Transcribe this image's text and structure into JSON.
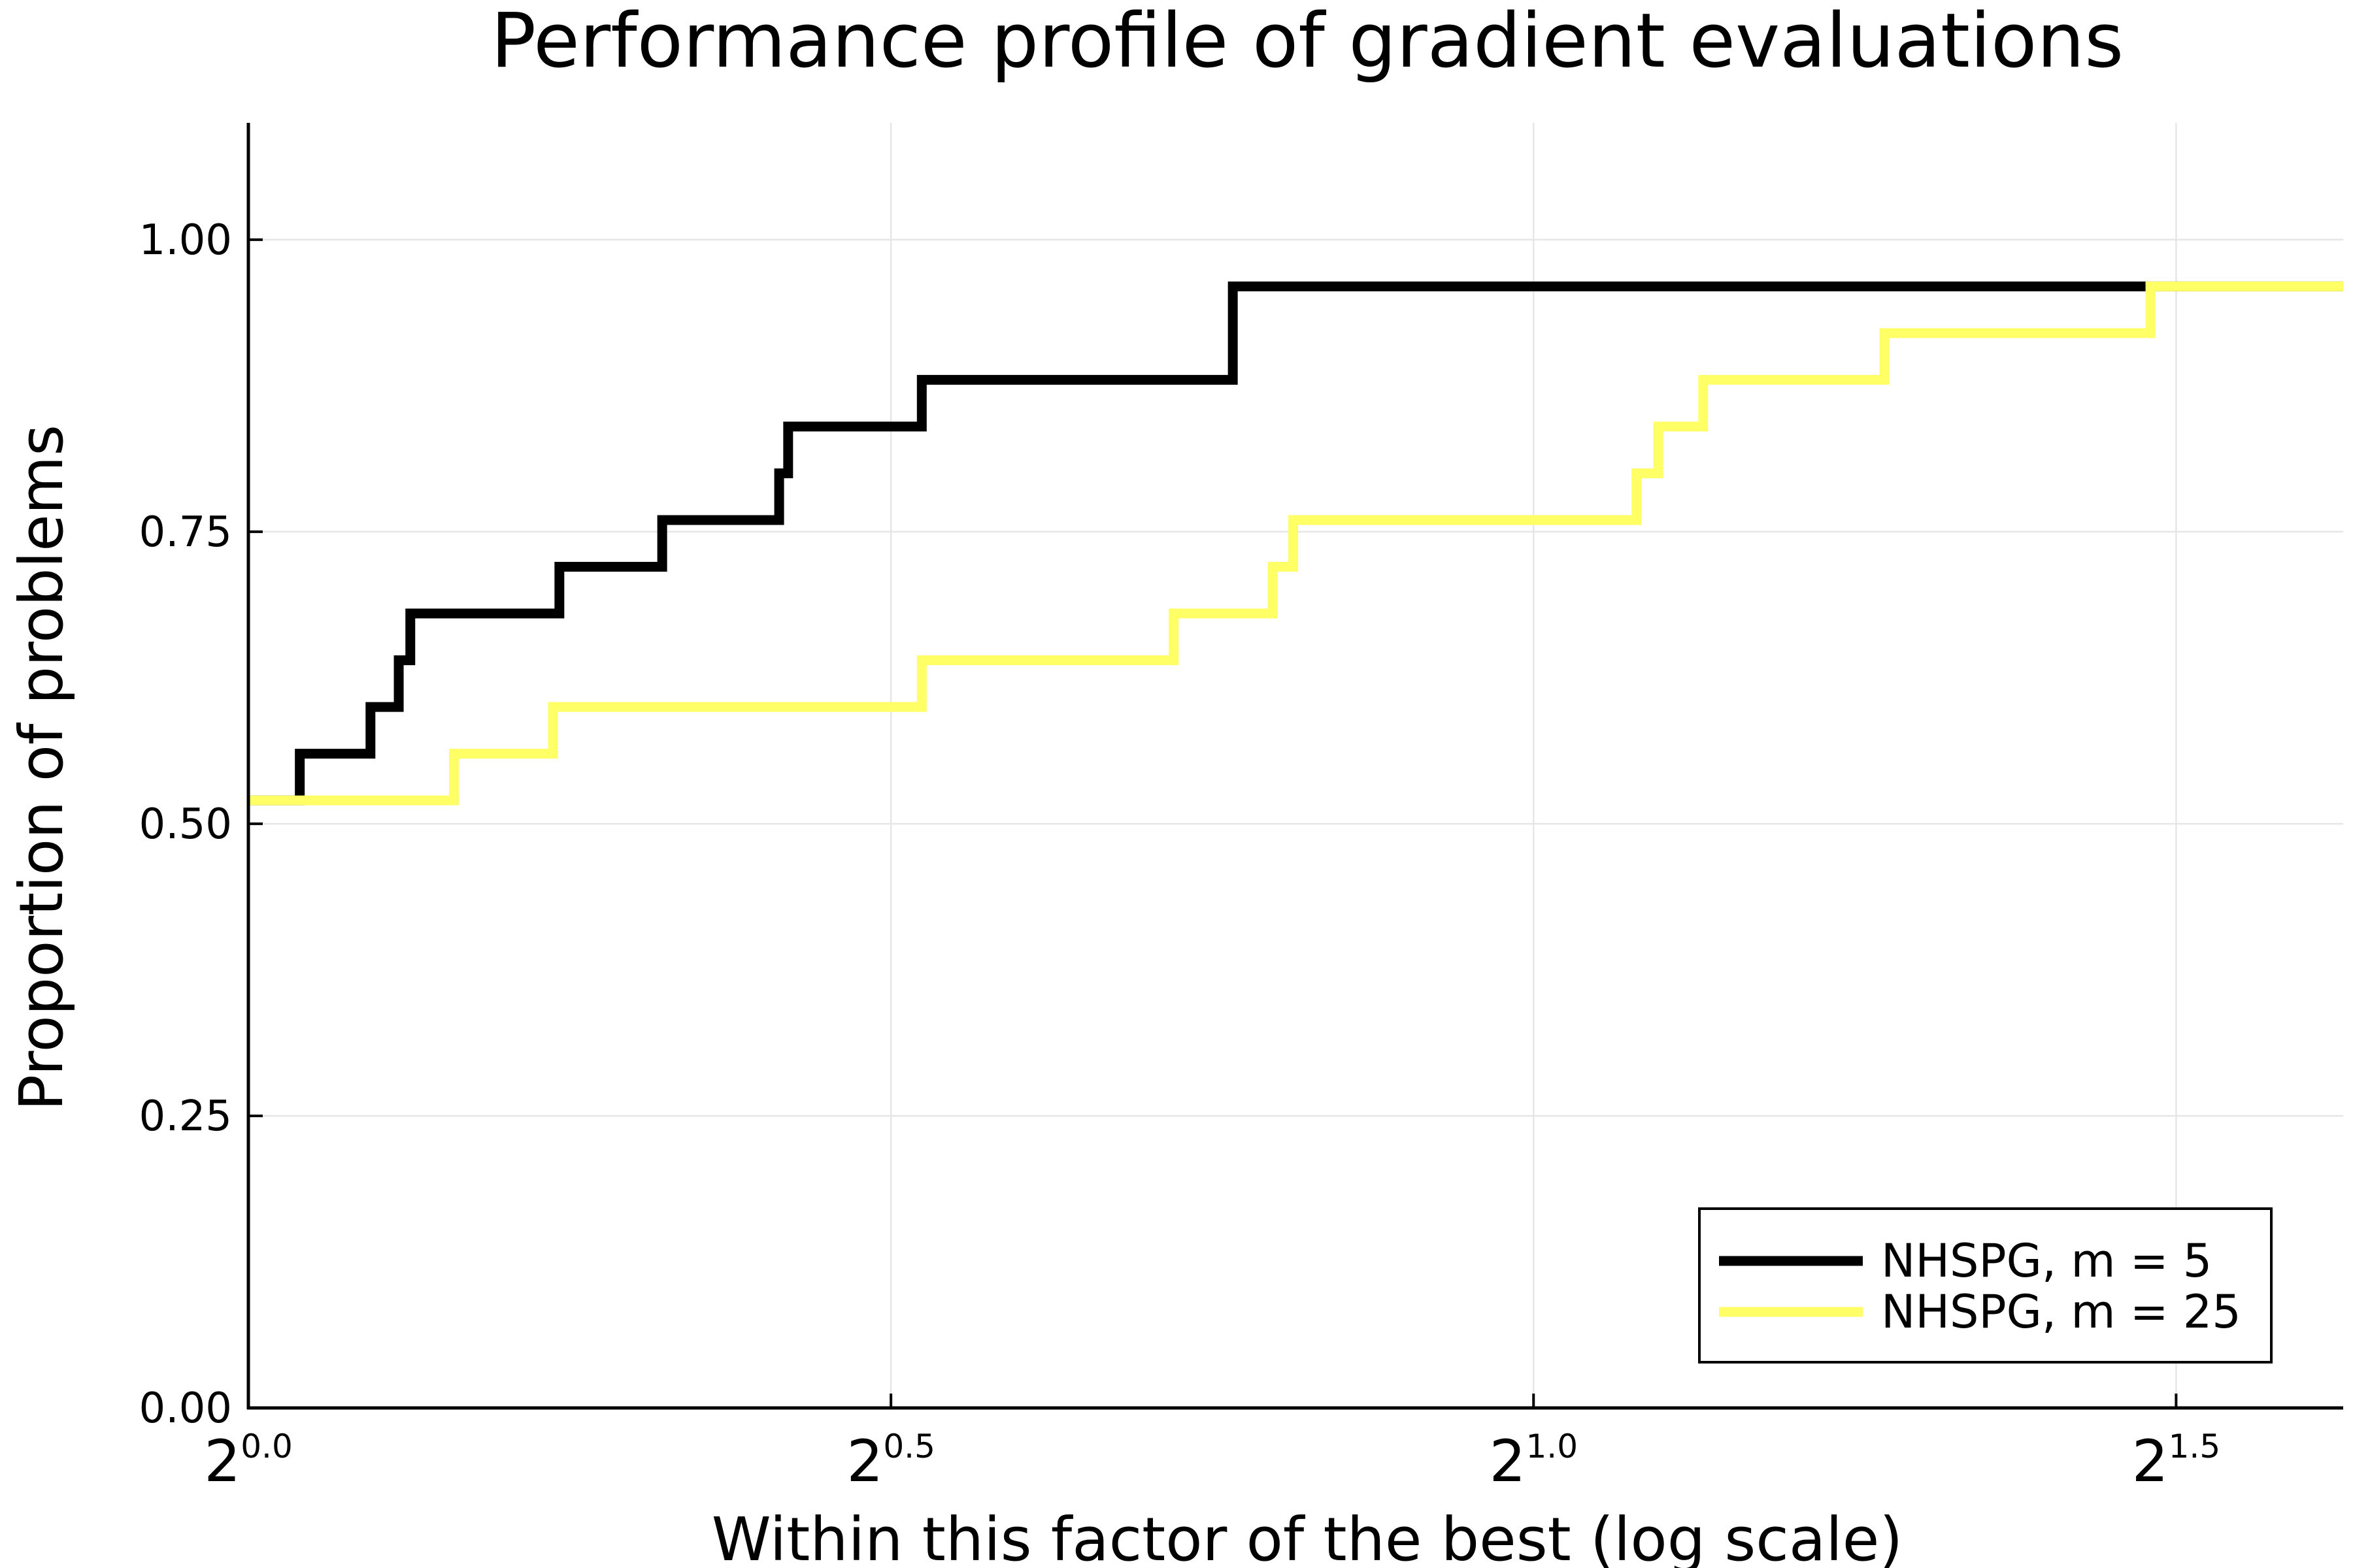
{
  "chart_data": {
    "type": "line",
    "title": "Performance profile of gradient evaluations",
    "xlabel": "Within this factor of the best (log scale)",
    "ylabel": "Proportion of problems",
    "x_scale": "log2",
    "x_unit_note": "x values are log2 of the factor (tick label 2^v)",
    "xlim": [
      0.0,
      1.63
    ],
    "ylim": [
      0.0,
      1.1
    ],
    "x_ticks": [
      {
        "base": "2",
        "exp": "0.0",
        "value": 0.0
      },
      {
        "base": "2",
        "exp": "0.5",
        "value": 0.5
      },
      {
        "base": "2",
        "exp": "1.0",
        "value": 1.0
      },
      {
        "base": "2",
        "exp": "1.5",
        "value": 1.5
      }
    ],
    "y_ticks": [
      {
        "label": "0.00",
        "value": 0.0
      },
      {
        "label": "0.25",
        "value": 0.25
      },
      {
        "label": "0.50",
        "value": 0.5
      },
      {
        "label": "0.75",
        "value": 0.75
      },
      {
        "label": "1.00",
        "value": 1.0
      }
    ],
    "grid": true,
    "legend_position": "bottom-right",
    "series": [
      {
        "name": "NHSPG, m = 5",
        "color": "#000000",
        "step": "post",
        "points": [
          [
            0.0,
            0.52
          ],
          [
            0.04,
            0.56
          ],
          [
            0.095,
            0.6
          ],
          [
            0.117,
            0.64
          ],
          [
            0.126,
            0.68
          ],
          [
            0.242,
            0.72
          ],
          [
            0.322,
            0.76
          ],
          [
            0.413,
            0.8
          ],
          [
            0.42,
            0.84
          ],
          [
            0.524,
            0.88
          ],
          [
            0.766,
            0.96
          ],
          [
            1.48,
            0.96
          ],
          [
            1.63,
            0.96
          ]
        ]
      },
      {
        "name": "NHSPG, m = 25",
        "color": "#ffff66",
        "step": "post",
        "points": [
          [
            0.0,
            0.52
          ],
          [
            0.16,
            0.56
          ],
          [
            0.237,
            0.6
          ],
          [
            0.524,
            0.64
          ],
          [
            0.72,
            0.68
          ],
          [
            0.797,
            0.72
          ],
          [
            0.813,
            0.76
          ],
          [
            1.08,
            0.8
          ],
          [
            1.097,
            0.84
          ],
          [
            1.132,
            0.88
          ],
          [
            1.273,
            0.92
          ],
          [
            1.48,
            0.96
          ],
          [
            1.63,
            0.96
          ]
        ]
      }
    ]
  }
}
